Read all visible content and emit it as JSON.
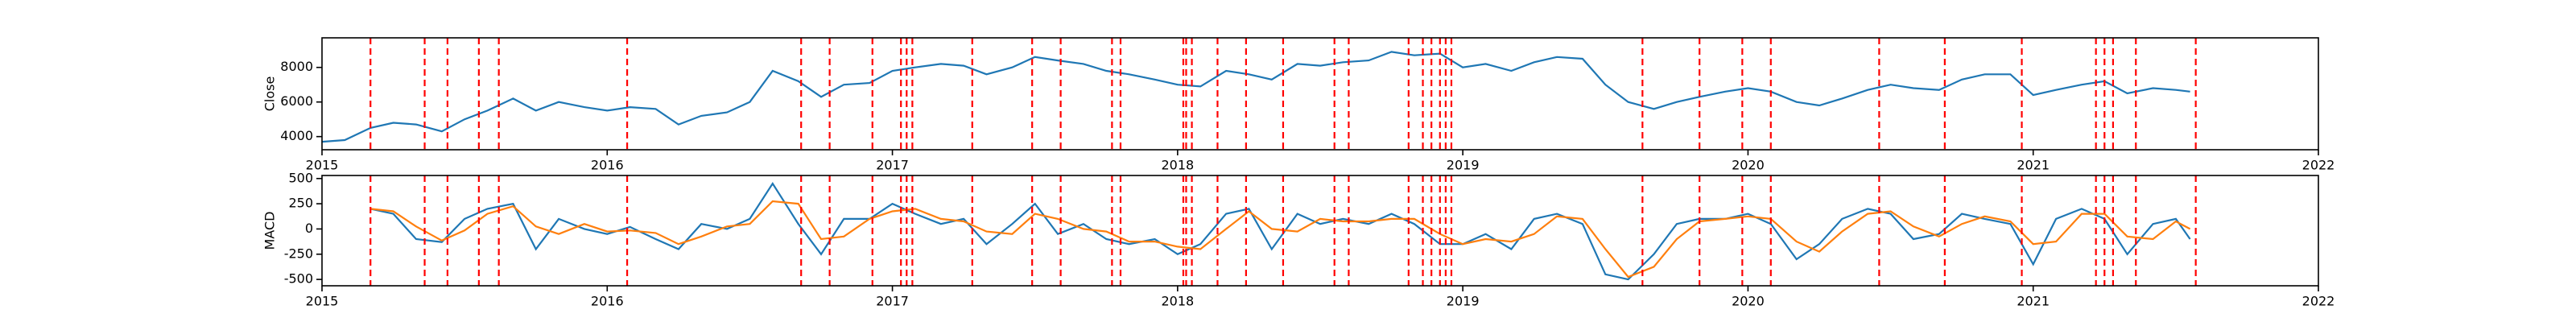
{
  "chart_data": [
    {
      "type": "line",
      "ylabel": "Close",
      "xlim": [
        2015,
        2022
      ],
      "xticks": [
        2015,
        2016,
        2017,
        2018,
        2019,
        2020,
        2021,
        2022
      ],
      "ylim": [
        3240,
        9710
      ],
      "yticks": [
        4000,
        6000,
        8000
      ],
      "event_color": "#ff0000",
      "events": [
        2015.17,
        2015.36,
        2015.44,
        2015.55,
        2015.62,
        2016.07,
        2016.68,
        2016.78,
        2016.93,
        2017.03,
        2017.05,
        2017.07,
        2017.28,
        2017.49,
        2017.59,
        2017.77,
        2017.8,
        2018.02,
        2018.03,
        2018.05,
        2018.14,
        2018.24,
        2018.37,
        2018.55,
        2018.6,
        2018.81,
        2018.86,
        2018.89,
        2018.92,
        2018.94,
        2018.96,
        2019.63,
        2019.83,
        2019.98,
        2020.08,
        2020.46,
        2020.69,
        2020.96,
        2021.22,
        2021.25,
        2021.28,
        2021.36,
        2021.57
      ],
      "x": [
        2015.0,
        2015.08,
        2015.17,
        2015.25,
        2015.33,
        2015.42,
        2015.5,
        2015.58,
        2015.67,
        2015.75,
        2015.83,
        2015.92,
        2016.0,
        2016.08,
        2016.17,
        2016.25,
        2016.33,
        2016.42,
        2016.5,
        2016.58,
        2016.67,
        2016.75,
        2016.83,
        2016.92,
        2017.0,
        2017.08,
        2017.17,
        2017.25,
        2017.33,
        2017.42,
        2017.5,
        2017.58,
        2017.67,
        2017.75,
        2017.83,
        2017.92,
        2018.0,
        2018.08,
        2018.17,
        2018.25,
        2018.33,
        2018.42,
        2018.5,
        2018.58,
        2018.67,
        2018.75,
        2018.83,
        2018.92,
        2019.0,
        2019.08,
        2019.17,
        2019.25,
        2019.33,
        2019.42,
        2019.5,
        2019.58,
        2019.67,
        2019.75,
        2019.83,
        2019.92,
        2020.0,
        2020.08,
        2020.17,
        2020.25,
        2020.33,
        2020.42,
        2020.5,
        2020.58,
        2020.67,
        2020.75,
        2020.83,
        2020.92,
        2021.0,
        2021.08,
        2021.17,
        2021.25,
        2021.33,
        2021.42,
        2021.5,
        2021.55
      ],
      "series": [
        {
          "color": "#1f77b4",
          "values": [
            3700,
            3800,
            4500,
            4800,
            4700,
            4300,
            5000,
            5500,
            6200,
            5500,
            6000,
            5700,
            5500,
            5700,
            5600,
            4700,
            5200,
            5400,
            6000,
            7800,
            7200,
            6300,
            7000,
            7100,
            7800,
            8000,
            8200,
            8100,
            7600,
            8000,
            8600,
            8400,
            8200,
            7800,
            7600,
            7300,
            7000,
            6900,
            7800,
            7600,
            7300,
            8200,
            8100,
            8300,
            8400,
            8900,
            8700,
            8800,
            8000,
            8200,
            7800,
            8300,
            8600,
            8500,
            7000,
            6000,
            5600,
            6000,
            6300,
            6600,
            6800,
            6600,
            6000,
            5800,
            6200,
            6700,
            7000,
            6800,
            6700,
            7300,
            7600,
            7600,
            6400,
            6700,
            7000,
            7200,
            6500,
            6800,
            6700,
            6600
          ]
        }
      ]
    },
    {
      "type": "line",
      "ylabel": "MACD",
      "xlim": [
        2015,
        2022
      ],
      "xticks": [
        2015,
        2016,
        2017,
        2018,
        2019,
        2020,
        2021,
        2022
      ],
      "ylim": [
        -563,
        530
      ],
      "yticks": [
        -500,
        -250,
        0,
        250,
        500
      ],
      "event_color": "#ff0000",
      "events": [
        2015.17,
        2015.36,
        2015.44,
        2015.55,
        2015.62,
        2016.07,
        2016.68,
        2016.78,
        2016.93,
        2017.03,
        2017.05,
        2017.07,
        2017.28,
        2017.49,
        2017.59,
        2017.77,
        2017.8,
        2018.02,
        2018.03,
        2018.05,
        2018.14,
        2018.24,
        2018.37,
        2018.55,
        2018.6,
        2018.81,
        2018.86,
        2018.89,
        2018.92,
        2018.94,
        2018.96,
        2019.63,
        2019.83,
        2019.98,
        2020.08,
        2020.46,
        2020.69,
        2020.96,
        2021.22,
        2021.25,
        2021.28,
        2021.36,
        2021.57
      ],
      "x": [
        2015.0,
        2015.08,
        2015.17,
        2015.25,
        2015.33,
        2015.42,
        2015.5,
        2015.58,
        2015.67,
        2015.75,
        2015.83,
        2015.92,
        2016.0,
        2016.08,
        2016.17,
        2016.25,
        2016.33,
        2016.42,
        2016.5,
        2016.58,
        2016.67,
        2016.75,
        2016.83,
        2016.92,
        2017.0,
        2017.08,
        2017.17,
        2017.25,
        2017.33,
        2017.42,
        2017.5,
        2017.58,
        2017.67,
        2017.75,
        2017.83,
        2017.92,
        2018.0,
        2018.08,
        2018.17,
        2018.25,
        2018.33,
        2018.42,
        2018.5,
        2018.58,
        2018.67,
        2018.75,
        2018.83,
        2018.92,
        2019.0,
        2019.08,
        2019.17,
        2019.25,
        2019.33,
        2019.42,
        2019.5,
        2019.58,
        2019.67,
        2019.75,
        2019.83,
        2019.92,
        2020.0,
        2020.08,
        2020.17,
        2020.25,
        2020.33,
        2020.42,
        2020.5,
        2020.58,
        2020.67,
        2020.75,
        2020.83,
        2020.92,
        2021.0,
        2021.08,
        2021.17,
        2021.25,
        2021.33,
        2021.42,
        2021.5,
        2021.55
      ],
      "series": [
        {
          "color": "#1f77b4",
          "values": [
            null,
            null,
            200,
            150,
            -100,
            -130,
            100,
            200,
            250,
            -200,
            100,
            0,
            -50,
            20,
            -100,
            -200,
            50,
            0,
            100,
            450,
            50,
            -250,
            100,
            100,
            250,
            150,
            50,
            100,
            -150,
            50,
            250,
            -50,
            50,
            -100,
            -150,
            -100,
            -250,
            -150,
            150,
            200,
            -200,
            150,
            50,
            100,
            50,
            150,
            50,
            -150,
            -150,
            -50,
            -200,
            100,
            150,
            50,
            -450,
            -500,
            -250,
            50,
            100,
            100,
            150,
            50,
            -300,
            -150,
            100,
            200,
            150,
            -100,
            -50,
            150,
            100,
            50,
            -350,
            100,
            200,
            100,
            -250,
            50,
            100,
            -100
          ]
        },
        {
          "color": "#ff7f0e",
          "values": [
            null,
            null,
            200,
            175,
            25,
            -115,
            -15,
            150,
            225,
            25,
            -50,
            50,
            -25,
            -15,
            -40,
            -150,
            -75,
            25,
            50,
            275,
            250,
            -100,
            -75,
            100,
            175,
            200,
            100,
            75,
            -25,
            -50,
            150,
            100,
            0,
            -25,
            -125,
            -125,
            -175,
            -200,
            0,
            175,
            0,
            -25,
            100,
            75,
            75,
            100,
            100,
            -50,
            -150,
            -100,
            -125,
            -50,
            125,
            100,
            -200,
            -475,
            -375,
            -100,
            75,
            100,
            125,
            100,
            -125,
            -225,
            -25,
            150,
            175,
            25,
            -75,
            50,
            125,
            75,
            -150,
            -125,
            150,
            150,
            -75,
            -100,
            75,
            0
          ]
        }
      ]
    }
  ]
}
